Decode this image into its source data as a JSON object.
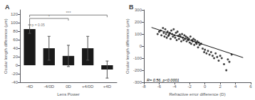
{
  "chart_data": [
    {
      "type": "bar",
      "title": "A",
      "categories": [
        "-4D",
        "-4/0D",
        "0D",
        "+4/0D",
        "+4D"
      ],
      "values": [
        85,
        40,
        22,
        40,
        -10
      ],
      "errors": [
        10,
        28,
        25,
        28,
        20
      ],
      "color": "#1a1a1a",
      "xlabel": "Lens Power",
      "ylabel": "Ocular length difference (μm)",
      "ylim": [
        -40,
        130
      ],
      "yticks": [
        -40,
        -20,
        0,
        20,
        40,
        60,
        80,
        100,
        120
      ],
      "grid": false,
      "annotations": [
        {
          "text": "p = 0.05",
          "from": "-4D",
          "to": "-4D",
          "y": [
            90,
            105
          ]
        },
        {
          "text": "*",
          "from": "-4D",
          "to": "0D",
          "y": 110
        },
        {
          "text": "***",
          "from": "-4D",
          "to": "+4D",
          "y": 118
        }
      ]
    },
    {
      "type": "scatter",
      "title": "B",
      "xlabel": "Refractive error difference (D)",
      "ylabel": "Ocular length difference (μm)",
      "xlim": [
        -8,
        6
      ],
      "ylim": [
        -300,
        300
      ],
      "xticks": [
        -8,
        -6,
        -4,
        -2,
        0,
        2,
        4,
        6
      ],
      "yticks": [
        -300,
        -200,
        -100,
        0,
        100,
        200,
        300
      ],
      "grid": false,
      "annotation": "R= 0.56, p<0.0001",
      "x": [
        -6.2,
        -6.0,
        -5.8,
        -5.7,
        -5.5,
        -5.4,
        -5.3,
        -5.2,
        -5.1,
        -5.0,
        -4.9,
        -4.8,
        -4.7,
        -4.6,
        -4.5,
        -4.4,
        -4.3,
        -4.2,
        -4.1,
        -4.0,
        -3.9,
        -3.8,
        -3.7,
        -3.6,
        -3.5,
        -3.4,
        -3.3,
        -3.2,
        -3.1,
        -3.0,
        -2.9,
        -2.8,
        -2.7,
        -2.6,
        -2.5,
        -2.4,
        -2.3,
        -2.2,
        -2.1,
        -2.0,
        -1.9,
        -1.8,
        -1.7,
        -1.6,
        -1.5,
        -1.4,
        -1.3,
        -1.2,
        -1.1,
        -1.0,
        -0.9,
        -0.8,
        -0.7,
        -0.5,
        -0.3,
        -0.1,
        0.0,
        0.2,
        0.4,
        0.6,
        0.8,
        1.0,
        1.2,
        1.4,
        1.6,
        1.8,
        2.0,
        2.2,
        2.5,
        2.8,
        3.0,
        3.2,
        3.5
      ],
      "values": [
        100,
        120,
        130,
        90,
        150,
        110,
        80,
        140,
        100,
        70,
        120,
        85,
        95,
        110,
        60,
        130,
        100,
        80,
        140,
        90,
        70,
        110,
        50,
        120,
        85,
        60,
        95,
        80,
        40,
        100,
        70,
        50,
        90,
        60,
        80,
        40,
        70,
        50,
        60,
        30,
        80,
        20,
        50,
        40,
        60,
        10,
        50,
        30,
        20,
        40,
        -10,
        30,
        10,
        20,
        -20,
        -50,
        -30,
        -60,
        -40,
        -70,
        -50,
        -80,
        -100,
        -60,
        -90,
        -120,
        -80,
        -100,
        -150,
        -200,
        -110,
        -130,
        -70
      ],
      "color": "#111111",
      "regression": {
        "type": "line",
        "x": [
          -7,
          5
        ],
        "values": [
          155,
          -95
        ],
        "color": "#111111"
      }
    }
  ]
}
